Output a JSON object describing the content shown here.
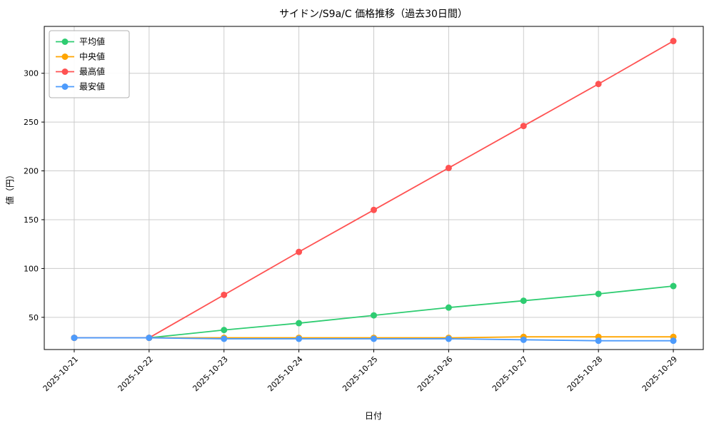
{
  "chart_data": {
    "type": "line",
    "title": "サイドン/S9a/C 価格推移（過去30日間）",
    "xlabel": "日付",
    "ylabel": "値（円）",
    "categories": [
      "2025-10-21",
      "2025-10-22",
      "2025-10-23",
      "2025-10-24",
      "2025-10-25",
      "2025-10-26",
      "2025-10-27",
      "2025-10-28",
      "2025-10-29"
    ],
    "yticks": [
      50,
      100,
      150,
      200,
      250,
      300
    ],
    "ylim": [
      17,
      348
    ],
    "grid": true,
    "legend_position": "upper-left",
    "colors": {
      "grid": "#cccccc",
      "axis": "#000000",
      "legend_border": "#b0b0b0",
      "background": "#ffffff"
    },
    "series": [
      {
        "name": "平均値",
        "slug": "average",
        "color": "#2ecc71",
        "values": [
          29,
          29,
          37,
          44,
          52,
          60,
          67,
          74,
          82
        ]
      },
      {
        "name": "中央値",
        "slug": "median",
        "color": "#ffa500",
        "values": [
          29,
          29,
          29,
          29,
          29,
          29,
          30,
          30,
          30
        ]
      },
      {
        "name": "最高値",
        "slug": "highest",
        "color": "#ff5252",
        "values": [
          29,
          29,
          73,
          117,
          160,
          203,
          246,
          289,
          333
        ]
      },
      {
        "name": "最安値",
        "slug": "lowest",
        "color": "#4d9bfc",
        "values": [
          29,
          29,
          28,
          28,
          28,
          28,
          27,
          26,
          26
        ]
      }
    ]
  }
}
